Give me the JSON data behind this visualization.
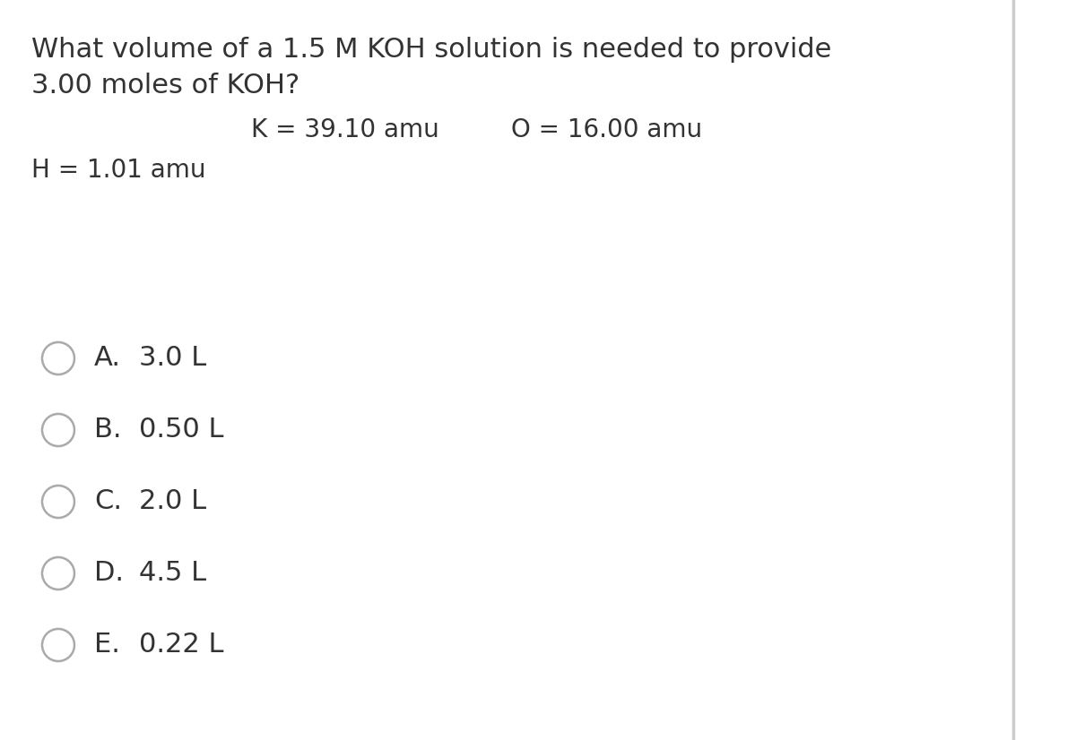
{
  "background_color": "#ffffff",
  "question_line1": "What volume of a 1.5 M KOH solution is needed to provide",
  "question_line2": "3.00 moles of KOH?",
  "k_label": "K = 39.10 amu",
  "o_label": "O = 16.00 amu",
  "h_label": "H = 1.01 amu",
  "choices": [
    {
      "letter": "A.",
      "text": "3.0 L"
    },
    {
      "letter": "B.",
      "text": "0.50 L"
    },
    {
      "letter": "C.",
      "text": "2.0 L"
    },
    {
      "letter": "D.",
      "text": "4.5 L"
    },
    {
      "letter": "E.",
      "text": "0.22 L"
    }
  ],
  "text_color": "#333333",
  "circle_color": "#aaaaaa",
  "question_fontsize": 22,
  "atomic_fontsize": 20,
  "choice_fontsize": 22,
  "right_border_color": "#cccccc"
}
